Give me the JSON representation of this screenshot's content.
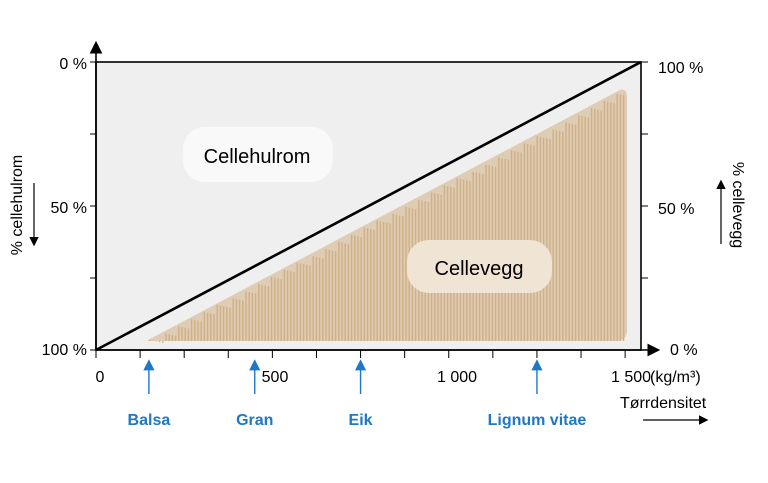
{
  "diagram": {
    "labels": {
      "left_axis": "% cellehulrom",
      "right_axis": "% cellevegg",
      "x_axis_title": "Tørrdensitet",
      "unit": "(kg/m³)",
      "region_top": "Cellehulrom",
      "region_bottom": "Cellevegg"
    },
    "left_ticks": [
      "0 %",
      "50 %",
      "100 %"
    ],
    "right_ticks": [
      "100 %",
      "50 %",
      "0 %"
    ],
    "x_ticks": [
      "0",
      "500",
      "1 000",
      "1 500"
    ],
    "woods": [
      {
        "name": "Balsa",
        "density": 150
      },
      {
        "name": "Gran",
        "density": 450
      },
      {
        "name": "Eik",
        "density": 750
      },
      {
        "name": "Lignum vitae",
        "density": 1250
      }
    ],
    "colors": {
      "cell_lumen_fill": "#efefef",
      "cell_wall_fill": "#cfaf85",
      "wood_label": "#1f77c8",
      "axis": "#000000"
    }
  }
}
